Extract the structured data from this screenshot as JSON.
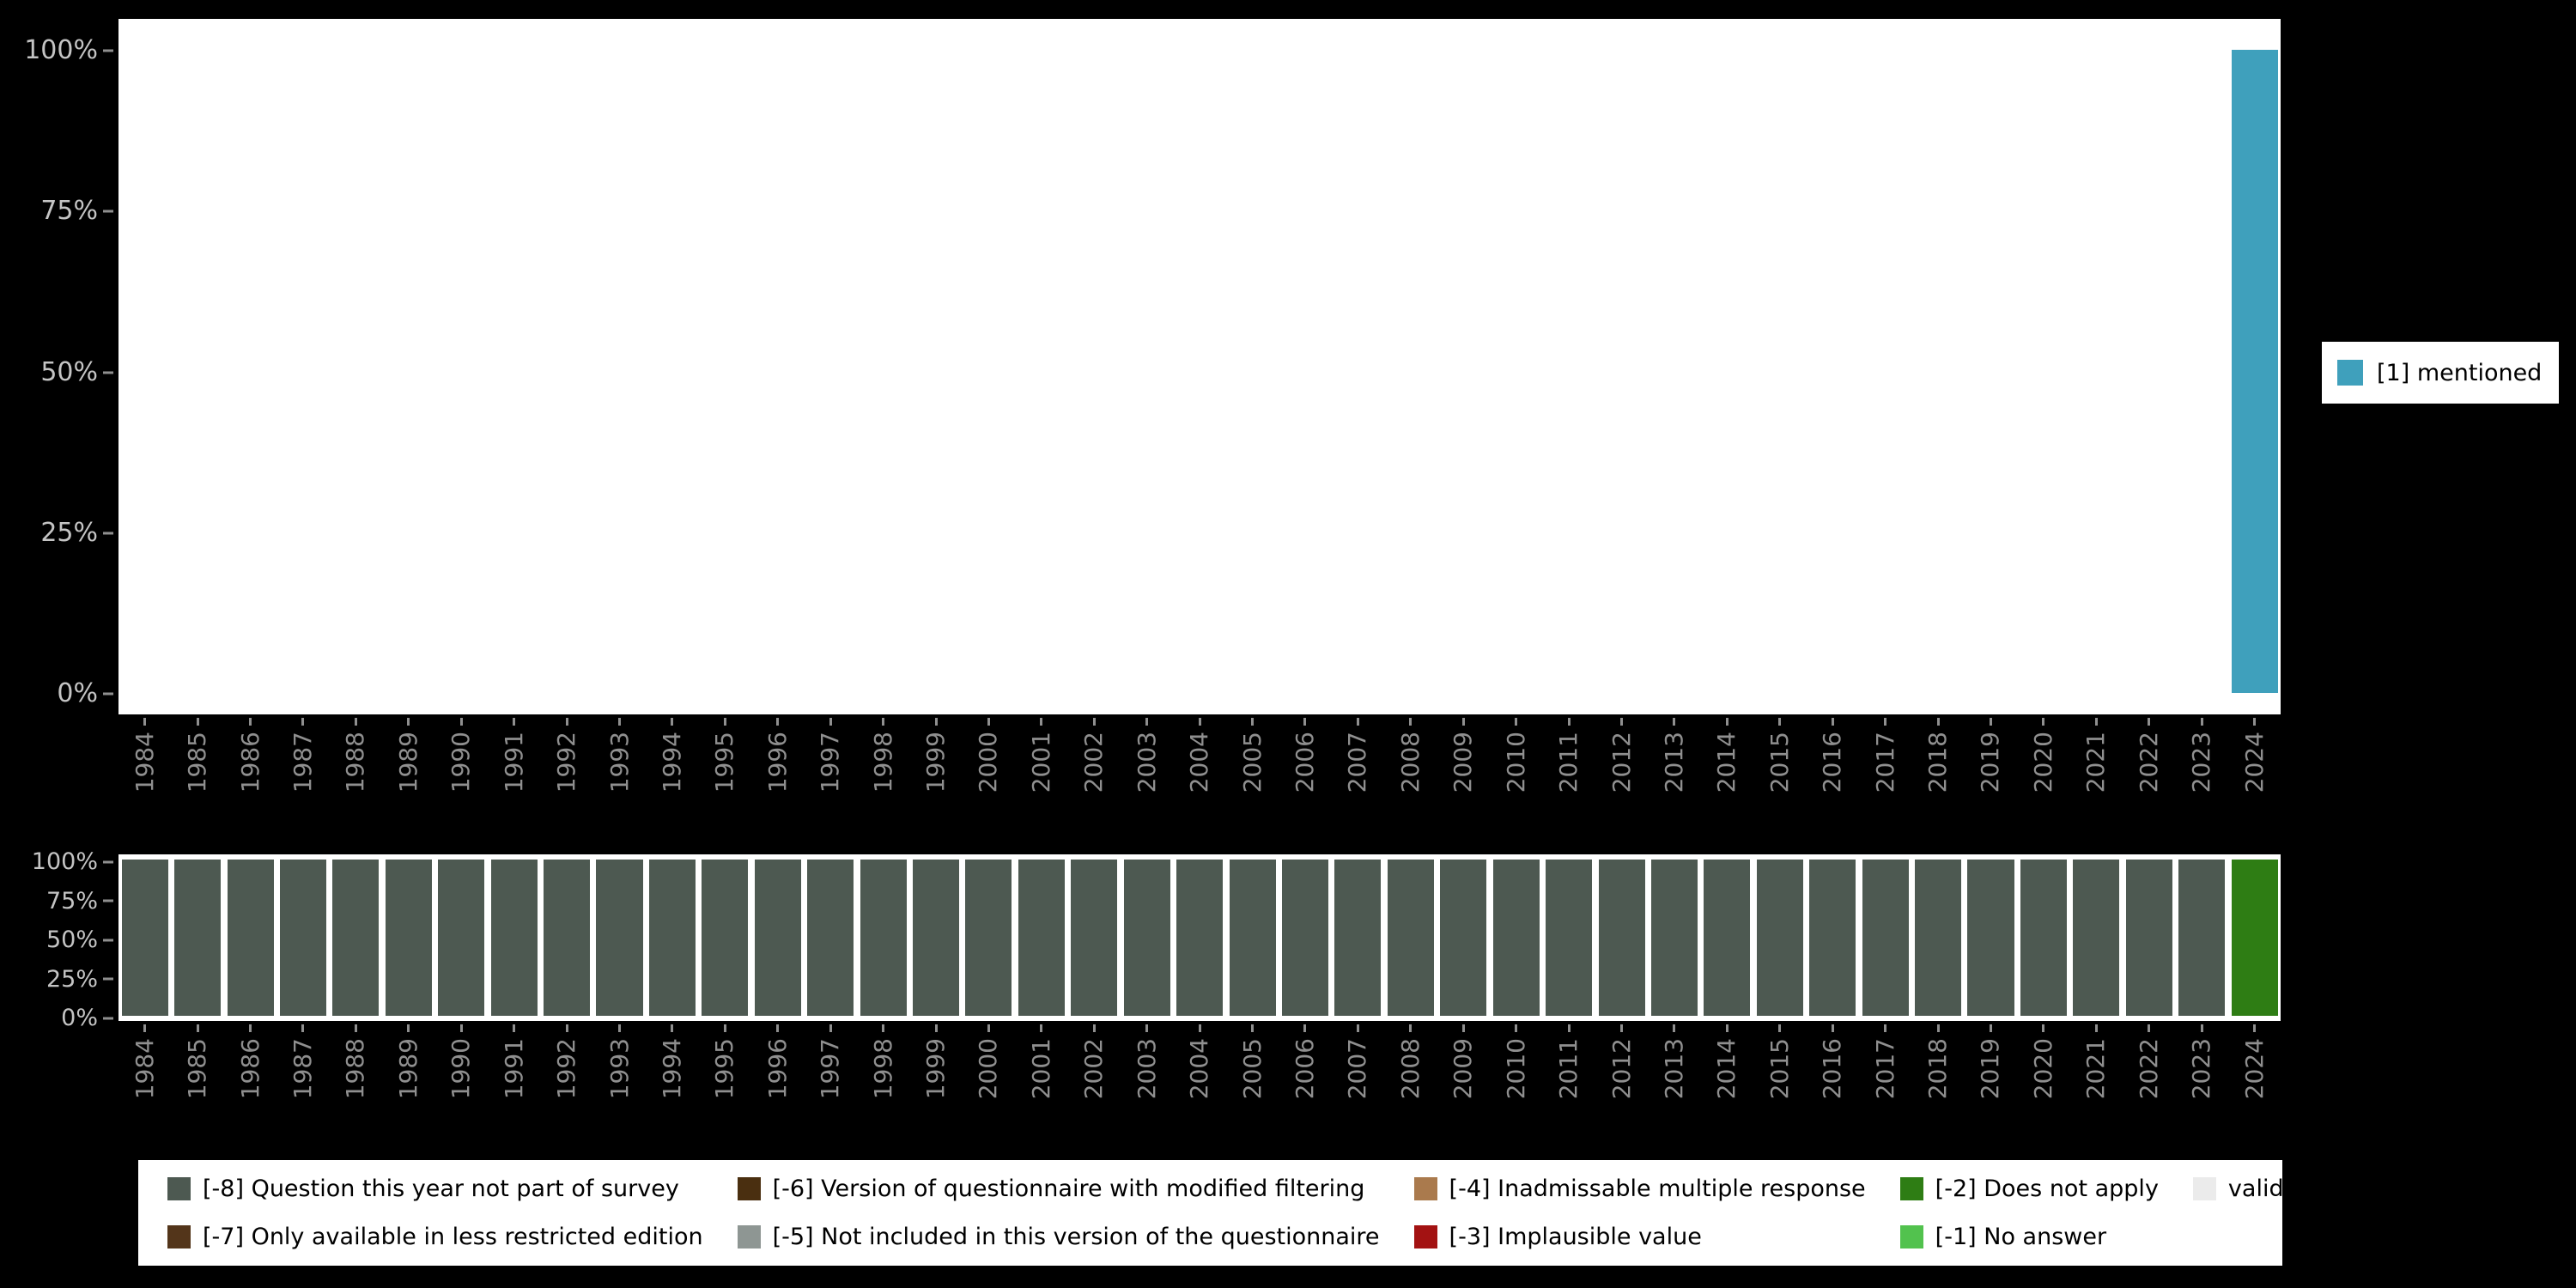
{
  "colors": {
    "background": "#000000",
    "panel": "#ffffff",
    "y_axis_text": "#c4c4c4",
    "x_axis_text": "#8f8f8f",
    "tick": "#8f8f8f"
  },
  "legend_right": {
    "label": "[1] mentioned",
    "color": "#3fa0bc"
  },
  "legend_bottom": {
    "items": [
      {
        "label": "[-8] Question this year not part of survey",
        "color": "#4d5951"
      },
      {
        "label": "[-6] Version of questionnaire with modified filtering",
        "color": "#4a2f10"
      },
      {
        "label": "[-4] Inadmissable multiple response",
        "color": "#aa7a4d"
      },
      {
        "label": "[-2] Does not apply",
        "color": "#2e7d14"
      },
      {
        "label": "valid cases",
        "color": "#ebebeb"
      },
      {
        "label": "[-7] Only available in less restricted edition",
        "color": "#53351a"
      },
      {
        "label": "[-5] Not included in this version of the questionnaire",
        "color": "#8e9693"
      },
      {
        "label": "[-3] Implausible value",
        "color": "#a31212"
      },
      {
        "label": "[-1] No answer",
        "color": "#52c24e"
      }
    ]
  },
  "chart_data": [
    {
      "type": "bar",
      "title": "",
      "xlabel": "",
      "ylabel": "",
      "ylim": [
        0,
        100
      ],
      "yticks": [
        "0%",
        "25%",
        "50%",
        "75%",
        "100%"
      ],
      "legend_position": "right",
      "categories": [
        "1984",
        "1985",
        "1986",
        "1987",
        "1988",
        "1989",
        "1990",
        "1991",
        "1992",
        "1993",
        "1994",
        "1995",
        "1996",
        "1997",
        "1998",
        "1999",
        "2000",
        "2001",
        "2002",
        "2003",
        "2004",
        "2005",
        "2006",
        "2007",
        "2008",
        "2009",
        "2010",
        "2011",
        "2012",
        "2013",
        "2014",
        "2015",
        "2016",
        "2017",
        "2018",
        "2019",
        "2020",
        "2021",
        "2022",
        "2023",
        "2024"
      ],
      "series": [
        {
          "name": "[1] mentioned",
          "color": "#3fa0bc",
          "values": [
            0,
            0,
            0,
            0,
            0,
            0,
            0,
            0,
            0,
            0,
            0,
            0,
            0,
            0,
            0,
            0,
            0,
            0,
            0,
            0,
            0,
            0,
            0,
            0,
            0,
            0,
            0,
            0,
            0,
            0,
            0,
            0,
            0,
            0,
            0,
            0,
            0,
            0,
            0,
            0,
            100
          ]
        }
      ]
    },
    {
      "type": "bar",
      "stacked": true,
      "title": "",
      "xlabel": "",
      "ylabel": "",
      "ylim": [
        0,
        100
      ],
      "yticks": [
        "0%",
        "25%",
        "50%",
        "75%",
        "100%"
      ],
      "legend_position": "bottom",
      "categories": [
        "1984",
        "1985",
        "1986",
        "1987",
        "1988",
        "1989",
        "1990",
        "1991",
        "1992",
        "1993",
        "1994",
        "1995",
        "1996",
        "1997",
        "1998",
        "1999",
        "2000",
        "2001",
        "2002",
        "2003",
        "2004",
        "2005",
        "2006",
        "2007",
        "2008",
        "2009",
        "2010",
        "2011",
        "2012",
        "2013",
        "2014",
        "2015",
        "2016",
        "2017",
        "2018",
        "2019",
        "2020",
        "2021",
        "2022",
        "2023",
        "2024"
      ],
      "series": [
        {
          "name": "[-8] Question this year not part of survey",
          "color": "#4d5951",
          "values": [
            100,
            100,
            100,
            100,
            100,
            100,
            100,
            100,
            100,
            100,
            100,
            100,
            100,
            100,
            100,
            100,
            100,
            100,
            100,
            100,
            100,
            100,
            100,
            100,
            100,
            100,
            100,
            100,
            100,
            100,
            100,
            100,
            100,
            100,
            100,
            100,
            100,
            100,
            100,
            100,
            0
          ]
        },
        {
          "name": "[-2] Does not apply",
          "color": "#2e7d14",
          "values": [
            0,
            0,
            0,
            0,
            0,
            0,
            0,
            0,
            0,
            0,
            0,
            0,
            0,
            0,
            0,
            0,
            0,
            0,
            0,
            0,
            0,
            0,
            0,
            0,
            0,
            0,
            0,
            0,
            0,
            0,
            0,
            0,
            0,
            0,
            0,
            0,
            0,
            0,
            0,
            0,
            100
          ]
        }
      ]
    }
  ]
}
